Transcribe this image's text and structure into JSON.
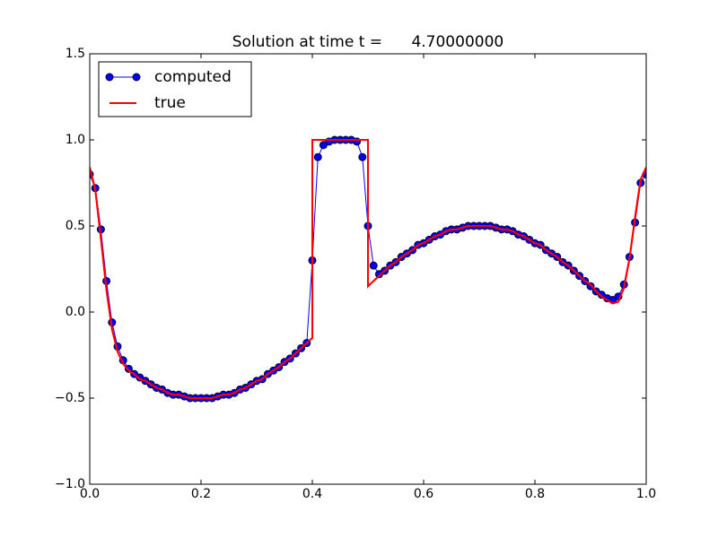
{
  "chart_data": {
    "type": "line",
    "title": "Solution at time t =      4.70000000",
    "xlim": [
      0,
      1
    ],
    "ylim": [
      -1,
      1.5
    ],
    "xticks": [
      {
        "value": 0,
        "label": "0.0"
      },
      {
        "value": 0.2,
        "label": "0.2"
      },
      {
        "value": 0.4,
        "label": "0.4"
      },
      {
        "value": 0.6,
        "label": "0.6"
      },
      {
        "value": 0.8,
        "label": "0.8"
      },
      {
        "value": 1,
        "label": "1.0"
      }
    ],
    "yticks": [
      {
        "value": -1,
        "label": "−1.0"
      },
      {
        "value": -0.5,
        "label": "−0.5"
      },
      {
        "value": 0,
        "label": "0.0"
      },
      {
        "value": 0.5,
        "label": "0.5"
      },
      {
        "value": 1,
        "label": "1.0"
      },
      {
        "value": 1.5,
        "label": "1.5"
      }
    ],
    "legend": "upper left",
    "grid": false,
    "series": [
      {
        "name": "computed",
        "color": "#0000ff",
        "marker": "o",
        "x": [
          0,
          0.01,
          0.02,
          0.03,
          0.04,
          0.05,
          0.06,
          0.07,
          0.08,
          0.09,
          0.1,
          0.11,
          0.12,
          0.13,
          0.14,
          0.15,
          0.16,
          0.17,
          0.18,
          0.19,
          0.2,
          0.21,
          0.22,
          0.23,
          0.24,
          0.25,
          0.26,
          0.27,
          0.28,
          0.29,
          0.3,
          0.31,
          0.32,
          0.33,
          0.34,
          0.35,
          0.36,
          0.37,
          0.38,
          0.39,
          0.4,
          0.41,
          0.42,
          0.43,
          0.44,
          0.45,
          0.46,
          0.47,
          0.48,
          0.49,
          0.5,
          0.51,
          0.52,
          0.53,
          0.54,
          0.55,
          0.56,
          0.57,
          0.58,
          0.59,
          0.6,
          0.61,
          0.62,
          0.63,
          0.64,
          0.65,
          0.66,
          0.67,
          0.68,
          0.69,
          0.7,
          0.71,
          0.72,
          0.73,
          0.74,
          0.75,
          0.76,
          0.77,
          0.78,
          0.79,
          0.8,
          0.81,
          0.82,
          0.83,
          0.84,
          0.85,
          0.86,
          0.87,
          0.88,
          0.89,
          0.9,
          0.91,
          0.92,
          0.93,
          0.94,
          0.95,
          0.96,
          0.97,
          0.98,
          0.99,
          1
        ],
        "values": [
          0.8,
          0.72,
          0.48,
          0.18,
          -0.06,
          -0.2,
          -0.28,
          -0.33,
          -0.36,
          -0.38,
          -0.4,
          -0.42,
          -0.44,
          -0.45,
          -0.47,
          -0.48,
          -0.48,
          -0.49,
          -0.5,
          -0.5,
          -0.5,
          -0.5,
          -0.5,
          -0.49,
          -0.48,
          -0.48,
          -0.47,
          -0.45,
          -0.44,
          -0.42,
          -0.4,
          -0.39,
          -0.36,
          -0.34,
          -0.32,
          -0.29,
          -0.27,
          -0.24,
          -0.21,
          -0.18,
          0.3,
          0.9,
          0.97,
          0.99,
          1,
          1,
          1,
          1,
          0.99,
          0.9,
          0.5,
          0.27,
          0.22,
          0.24,
          0.27,
          0.29,
          0.32,
          0.34,
          0.36,
          0.39,
          0.4,
          0.42,
          0.44,
          0.45,
          0.47,
          0.48,
          0.48,
          0.49,
          0.5,
          0.5,
          0.5,
          0.5,
          0.5,
          0.49,
          0.48,
          0.48,
          0.47,
          0.45,
          0.44,
          0.42,
          0.4,
          0.39,
          0.36,
          0.34,
          0.32,
          0.29,
          0.27,
          0.24,
          0.21,
          0.18,
          0.15,
          0.12,
          0.1,
          0.08,
          0.07,
          0.09,
          0.16,
          0.32,
          0.52,
          0.75,
          0.8
        ]
      },
      {
        "name": "true",
        "color": "#ff0000",
        "x": [
          0,
          0.01,
          0.02,
          0.03,
          0.04,
          0.05,
          0.06,
          0.07,
          0.08,
          0.09,
          0.1,
          0.11,
          0.12,
          0.13,
          0.14,
          0.15,
          0.16,
          0.17,
          0.18,
          0.19,
          0.2,
          0.21,
          0.22,
          0.23,
          0.24,
          0.25,
          0.26,
          0.27,
          0.28,
          0.29,
          0.3,
          0.31,
          0.32,
          0.33,
          0.34,
          0.35,
          0.36,
          0.37,
          0.38,
          0.39,
          0.4,
          0.4,
          0.41,
          0.42,
          0.43,
          0.44,
          0.45,
          0.46,
          0.47,
          0.48,
          0.49,
          0.5,
          0.5,
          0.51,
          0.52,
          0.53,
          0.54,
          0.55,
          0.56,
          0.57,
          0.58,
          0.59,
          0.6,
          0.61,
          0.62,
          0.63,
          0.64,
          0.65,
          0.66,
          0.67,
          0.68,
          0.69,
          0.7,
          0.71,
          0.72,
          0.73,
          0.74,
          0.75,
          0.76,
          0.77,
          0.78,
          0.79,
          0.8,
          0.81,
          0.82,
          0.83,
          0.84,
          0.85,
          0.86,
          0.87,
          0.88,
          0.89,
          0.9,
          0.91,
          0.92,
          0.93,
          0.94,
          0.95,
          0.96,
          0.97,
          0.98,
          0.99,
          1
        ],
        "values": [
          0.84,
          0.71,
          0.43,
          0.13,
          -0.1,
          -0.23,
          -0.3,
          -0.34,
          -0.36,
          -0.39,
          -0.4,
          -0.42,
          -0.44,
          -0.45,
          -0.47,
          -0.48,
          -0.48,
          -0.49,
          -0.5,
          -0.5,
          -0.5,
          -0.5,
          -0.5,
          -0.49,
          -0.48,
          -0.48,
          -0.47,
          -0.45,
          -0.44,
          -0.42,
          -0.4,
          -0.39,
          -0.36,
          -0.34,
          -0.32,
          -0.29,
          -0.27,
          -0.24,
          -0.21,
          -0.18,
          -0.15,
          1,
          1,
          1,
          1,
          1,
          1,
          1,
          1,
          1,
          1,
          1,
          0.15,
          0.18,
          0.21,
          0.24,
          0.27,
          0.29,
          0.32,
          0.34,
          0.36,
          0.39,
          0.4,
          0.42,
          0.44,
          0.45,
          0.47,
          0.48,
          0.48,
          0.49,
          0.5,
          0.5,
          0.5,
          0.5,
          0.5,
          0.49,
          0.48,
          0.48,
          0.47,
          0.45,
          0.44,
          0.42,
          0.4,
          0.39,
          0.36,
          0.34,
          0.32,
          0.29,
          0.27,
          0.24,
          0.21,
          0.18,
          0.16,
          0.12,
          0.09,
          0.07,
          0.05,
          0.06,
          0.14,
          0.31,
          0.55,
          0.77,
          0.84
        ]
      }
    ]
  }
}
